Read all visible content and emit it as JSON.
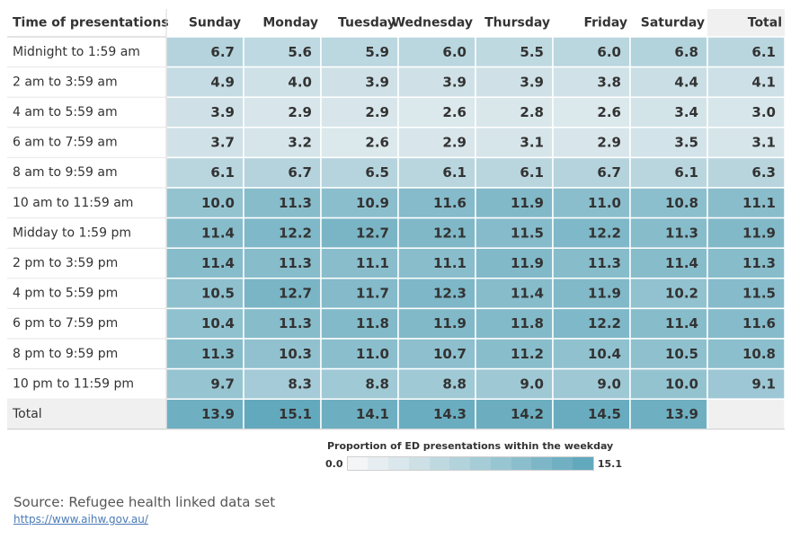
{
  "chart_data": {
    "type": "heatmap",
    "row_header": "Time of presentations",
    "columns": [
      "Sunday",
      "Monday",
      "Tuesday",
      "Wednesday",
      "Thursday",
      "Friday",
      "Saturday",
      "Total"
    ],
    "rows": [
      "Midnight to 1:59 am",
      "2 am to 3:59 am",
      "4 am to 5:59 am",
      "6 am to 7:59 am",
      "8 am to 9:59 am",
      "10 am to 11:59 am",
      "Midday to 1:59 pm",
      "2 pm to 3:59 pm",
      "4 pm to 5:59 pm",
      "6 pm to 7:59 pm",
      "8 pm to 9:59 pm",
      "10 pm to 11:59 pm"
    ],
    "values": [
      [
        6.7,
        5.6,
        5.9,
        6.0,
        5.5,
        6.0,
        6.8,
        6.1
      ],
      [
        4.9,
        4.0,
        3.9,
        3.9,
        3.9,
        3.8,
        4.4,
        4.1
      ],
      [
        3.9,
        2.9,
        2.9,
        2.6,
        2.8,
        2.6,
        3.4,
        3.0
      ],
      [
        3.7,
        3.2,
        2.6,
        2.9,
        3.1,
        2.9,
        3.5,
        3.1
      ],
      [
        6.1,
        6.7,
        6.5,
        6.1,
        6.1,
        6.7,
        6.1,
        6.3
      ],
      [
        10.0,
        11.3,
        10.9,
        11.6,
        11.9,
        11.0,
        10.8,
        11.1
      ],
      [
        11.4,
        12.2,
        12.7,
        12.1,
        11.5,
        12.2,
        11.3,
        11.9
      ],
      [
        11.4,
        11.3,
        11.1,
        11.1,
        11.9,
        11.3,
        11.4,
        11.3
      ],
      [
        10.5,
        12.7,
        11.7,
        12.3,
        11.4,
        11.9,
        10.2,
        11.5
      ],
      [
        10.4,
        11.3,
        11.8,
        11.9,
        11.8,
        12.2,
        11.4,
        11.6
      ],
      [
        11.3,
        10.3,
        11.0,
        10.7,
        11.2,
        10.4,
        10.5,
        10.8
      ],
      [
        9.7,
        8.3,
        8.8,
        8.8,
        9.0,
        9.0,
        10.0,
        9.1
      ]
    ],
    "total_row": {
      "label": "Total",
      "values": [
        13.9,
        15.1,
        14.1,
        14.3,
        14.2,
        14.5,
        13.9,
        null
      ]
    },
    "color_scale": {
      "title": "Proportion of ED presentations within the weekday",
      "min": 0.0,
      "max": 15.1,
      "min_label": "0.0",
      "max_label": "15.1",
      "low_color": "#f4f5f6",
      "high_color": "#63a9bd",
      "steps": 12
    }
  },
  "legend": {
    "title": "Proportion of ED presentations within the weekday",
    "min_label": "0.0",
    "max_label": "15.1"
  },
  "footer": {
    "source": "Source: Refugee health linked data set",
    "link": "https://www.aihw.gov.au/"
  },
  "colors": {
    "text": "#333333",
    "header_bg_total": "#f0f0f0",
    "cell_border": "#ffffff",
    "link": "#4a7bb7"
  }
}
